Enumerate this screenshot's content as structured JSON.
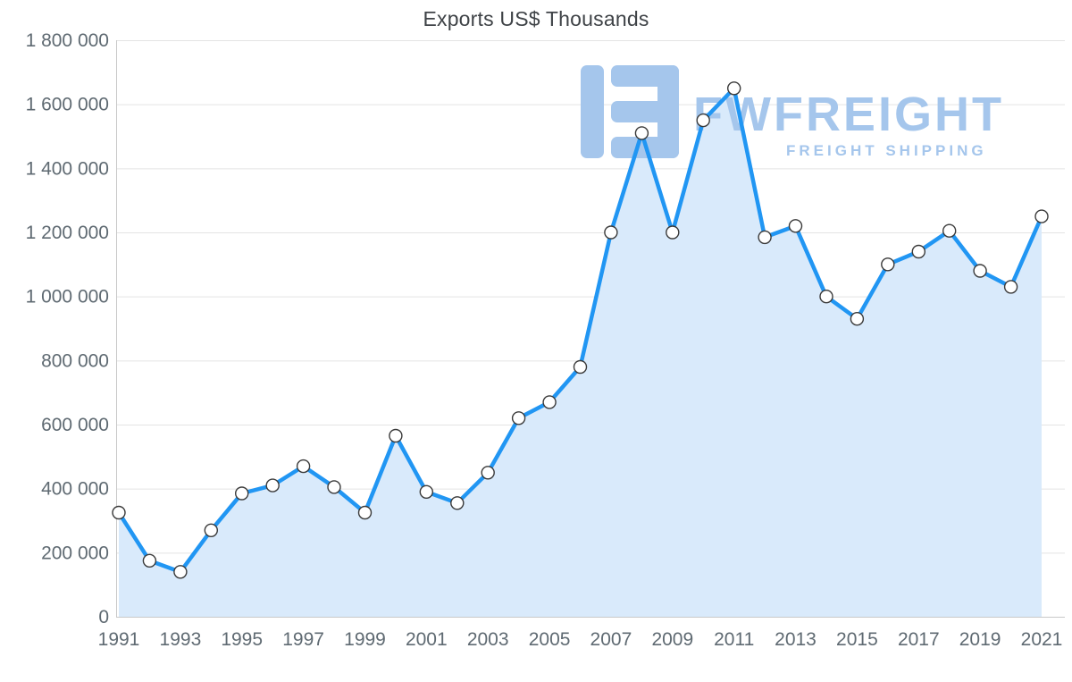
{
  "page": {
    "background": "#ffffff"
  },
  "chart_data": {
    "type": "area",
    "title": "Exports US$ Thousands",
    "xlabel": "",
    "ylabel": "",
    "x": [
      1991,
      1992,
      1993,
      1994,
      1995,
      1996,
      1997,
      1998,
      1999,
      2000,
      2001,
      2002,
      2003,
      2004,
      2005,
      2006,
      2007,
      2008,
      2009,
      2010,
      2011,
      2012,
      2013,
      2014,
      2015,
      2016,
      2017,
      2018,
      2019,
      2020,
      2021
    ],
    "values": [
      325000,
      175000,
      140000,
      270000,
      385000,
      410000,
      470000,
      405000,
      325000,
      565000,
      390000,
      355000,
      450000,
      620000,
      670000,
      780000,
      1200000,
      1510000,
      1200000,
      1550000,
      1650000,
      1185000,
      1220000,
      1000000,
      930000,
      1100000,
      1140000,
      1205000,
      1080000,
      1030000,
      1250000
    ],
    "ylim": [
      0,
      1800000
    ],
    "ytick_step": 200000,
    "ytick_format": "space-thousands",
    "xtick_step": 2,
    "grid": "horizontal",
    "legend": "none",
    "marker": "circle-open",
    "colors": {
      "line": "#2196f3",
      "area": "#d9eafb",
      "marker_fill": "#ffffff",
      "marker_stroke": "#3a3a3a",
      "grid": "#e4e4e4",
      "axis": "#c9c9c9",
      "axis_text": "#5f6a72",
      "title": "#3f4347"
    }
  },
  "watermark": {
    "brand": "FWFREIGHT",
    "tagline": "FREIGHT SHIPPING",
    "color": "#a5c6ec"
  }
}
